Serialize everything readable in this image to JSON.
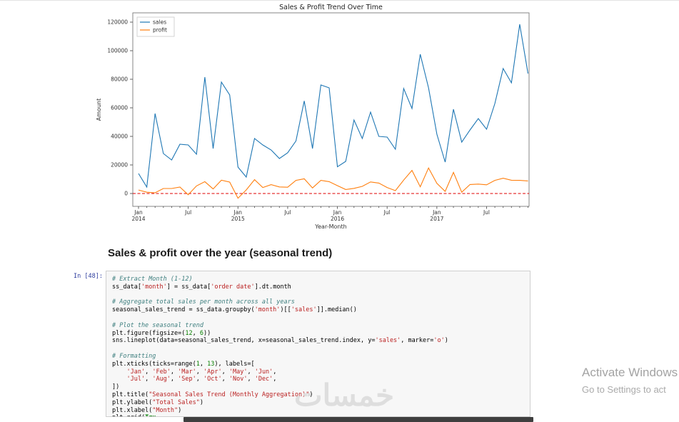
{
  "heading": "Sales & profit over the year (seasonal trend)",
  "watermark": "خمسات",
  "activate": {
    "line1": "Activate Windows",
    "line2": "Go to Settings to act"
  },
  "cell": {
    "prompt": "In [48]:",
    "lines": [
      [
        [
          "c",
          "# Extract Month (1-12)"
        ]
      ],
      [
        [
          "p",
          "ss_data["
        ],
        [
          "s",
          "'month'"
        ],
        [
          "p",
          "] = ss_data["
        ],
        [
          "s",
          "'order date'"
        ],
        [
          "p",
          "].dt.month"
        ]
      ],
      [],
      [
        [
          "c",
          "# Aggregate total sales per month across all years"
        ]
      ],
      [
        [
          "p",
          "seasonal_sales_trend = ss_data.groupby("
        ],
        [
          "s",
          "'month'"
        ],
        [
          "p",
          ")[["
        ],
        [
          "s",
          "'sales'"
        ],
        [
          "p",
          "]].median()"
        ]
      ],
      [],
      [
        [
          "c",
          "# Plot the seasonal trend"
        ]
      ],
      [
        [
          "p",
          "plt.figure(figsize=("
        ],
        [
          "n",
          "12"
        ],
        [
          "p",
          ", "
        ],
        [
          "n",
          "6"
        ],
        [
          "p",
          "))"
        ]
      ],
      [
        [
          "p",
          "sns.lineplot(data=seasonal_sales_trend, x=seasonal_sales_trend.index, y="
        ],
        [
          "s",
          "'sales'"
        ],
        [
          "p",
          ", marker="
        ],
        [
          "s",
          "'o'"
        ],
        [
          "p",
          ")"
        ]
      ],
      [],
      [
        [
          "c",
          "# Formatting"
        ]
      ],
      [
        [
          "p",
          "plt.xticks(ticks=range("
        ],
        [
          "n",
          "1"
        ],
        [
          "p",
          ", "
        ],
        [
          "n",
          "13"
        ],
        [
          "p",
          "), labels=["
        ]
      ],
      [
        [
          "p",
          "    "
        ],
        [
          "s",
          "'Jan'"
        ],
        [
          "p",
          ", "
        ],
        [
          "s",
          "'Feb'"
        ],
        [
          "p",
          ", "
        ],
        [
          "s",
          "'Mar'"
        ],
        [
          "p",
          ", "
        ],
        [
          "s",
          "'Apr'"
        ],
        [
          "p",
          ", "
        ],
        [
          "s",
          "'May'"
        ],
        [
          "p",
          ", "
        ],
        [
          "s",
          "'Jun'"
        ],
        [
          "p",
          ","
        ]
      ],
      [
        [
          "p",
          "    "
        ],
        [
          "s",
          "'Jul'"
        ],
        [
          "p",
          ", "
        ],
        [
          "s",
          "'Aug'"
        ],
        [
          "p",
          ", "
        ],
        [
          "s",
          "'Sep'"
        ],
        [
          "p",
          ", "
        ],
        [
          "s",
          "'Oct'"
        ],
        [
          "p",
          ", "
        ],
        [
          "s",
          "'Nov'"
        ],
        [
          "p",
          ", "
        ],
        [
          "s",
          "'Dec'"
        ],
        [
          "p",
          ","
        ]
      ],
      [
        [
          "p",
          "])"
        ]
      ],
      [
        [
          "p",
          "plt.title("
        ],
        [
          "s",
          "\"Seasonal Sales Trend (Monthly Aggregation)\""
        ],
        [
          "p",
          ")"
        ]
      ],
      [
        [
          "p",
          "plt.ylabel("
        ],
        [
          "s",
          "\"Total Sales\""
        ],
        [
          "p",
          ")"
        ]
      ],
      [
        [
          "p",
          "plt.xlabel("
        ],
        [
          "s",
          "\"Month\""
        ],
        [
          "p",
          ")"
        ]
      ],
      [
        [
          "p",
          "plt.grid("
        ],
        [
          "k",
          "Tru"
        ]
      ]
    ]
  },
  "chart_data": {
    "type": "line",
    "title": "Sales & Profit Trend Over Time",
    "xlabel": "Year-Month",
    "ylabel": "Amount",
    "x_period": {
      "start": "2014-01",
      "end": "2017-12",
      "freq": "monthly",
      "n_points": 48
    },
    "y_ticks": [
      0,
      20000,
      40000,
      60000,
      80000,
      100000,
      120000
    ],
    "ylim": [
      -9000,
      126500
    ],
    "grid": false,
    "legend": {
      "position": "upper left",
      "entries": [
        "sales",
        "profit"
      ]
    },
    "x_ticks": [
      {
        "i": 0,
        "lines": [
          "Jan",
          "2014"
        ]
      },
      {
        "i": 6,
        "lines": [
          "Jul"
        ]
      },
      {
        "i": 12,
        "lines": [
          "Jan",
          "2015"
        ]
      },
      {
        "i": 18,
        "lines": [
          "Jul"
        ]
      },
      {
        "i": 24,
        "lines": [
          "Jan",
          "2016"
        ]
      },
      {
        "i": 30,
        "lines": [
          "Jul"
        ]
      },
      {
        "i": 36,
        "lines": [
          "Jan",
          "2017"
        ]
      },
      {
        "i": 42,
        "lines": [
          "Jul"
        ]
      }
    ],
    "zero_line": {
      "y": 0,
      "color": "#e00000",
      "style": "dashed"
    },
    "series": [
      {
        "name": "sales",
        "color": "#1f77b4",
        "values": [
          14000,
          4500,
          56000,
          28000,
          23500,
          34500,
          34000,
          27500,
          81500,
          31500,
          78000,
          69000,
          18500,
          11500,
          38500,
          34000,
          30500,
          24500,
          28500,
          36800,
          64800,
          31500,
          76000,
          74000,
          18700,
          22500,
          51500,
          38500,
          57000,
          40000,
          39500,
          31000,
          73500,
          59500,
          97500,
          74000,
          41500,
          22000,
          59000,
          36000,
          44500,
          52500,
          45000,
          63000,
          87500,
          77500,
          118500,
          84000
        ]
      },
      {
        "name": "profit",
        "color": "#ff7f0e",
        "values": [
          2450,
          900,
          500,
          3500,
          3500,
          4500,
          -850,
          5300,
          8300,
          3200,
          9300,
          8000,
          -3300,
          2500,
          9700,
          4200,
          6200,
          4600,
          4400,
          9200,
          10300,
          3900,
          9200,
          8300,
          5500,
          2800,
          3600,
          5000,
          8100,
          7300,
          4200,
          2000,
          9400,
          16200,
          4700,
          17900,
          7100,
          1500,
          14800,
          900,
          6300,
          6600,
          6100,
          9200,
          10700,
          9300,
          9200,
          8800
        ]
      }
    ]
  }
}
